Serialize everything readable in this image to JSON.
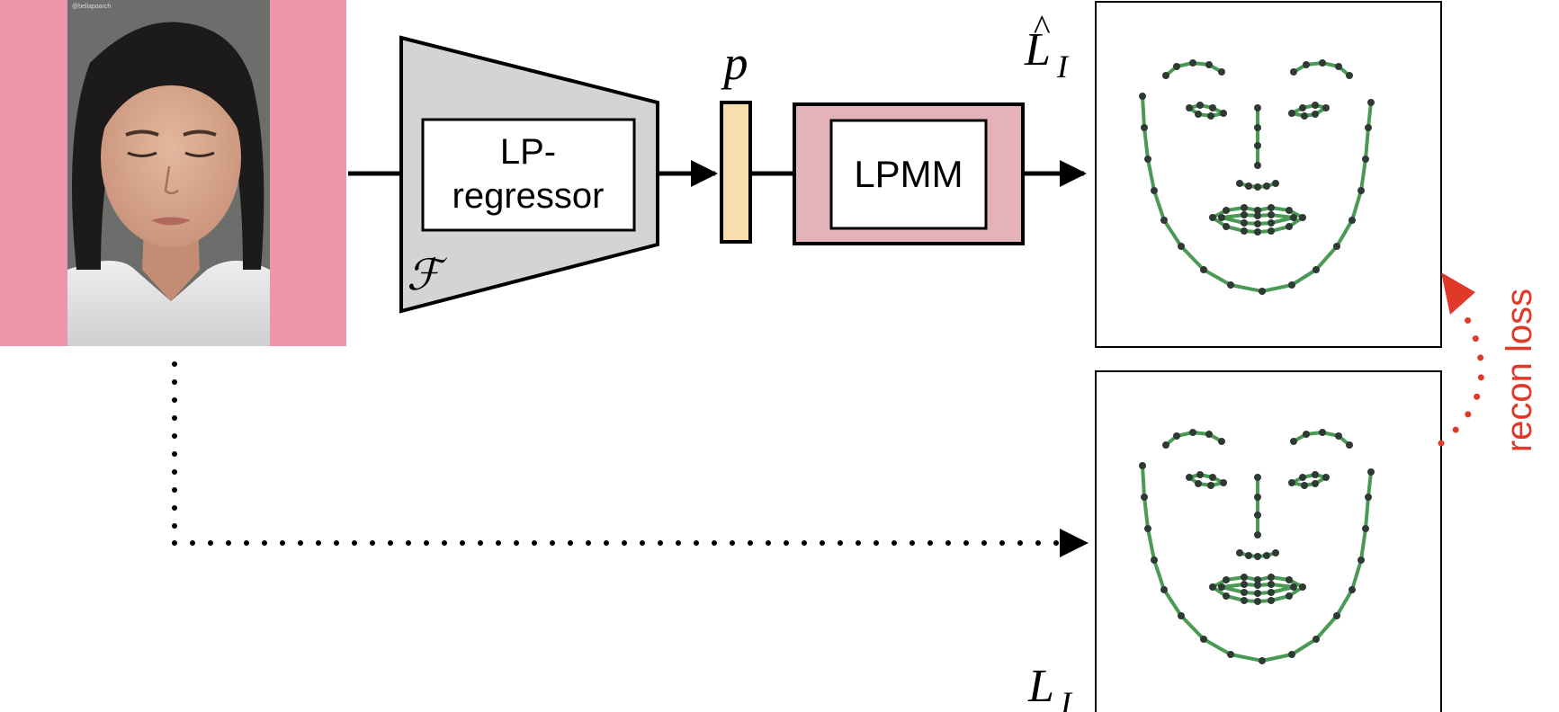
{
  "input_image": {
    "caption": "@bellapoarch"
  },
  "encoder": {
    "label_line1": "LP-",
    "label_line2": "regressor",
    "symbol": "ℱ"
  },
  "params": {
    "label": "p"
  },
  "model": {
    "label": "LPMM"
  },
  "predicted": {
    "label_main": "L",
    "label_sub": "I",
    "hat": "^"
  },
  "ground_truth": {
    "label_main": "L",
    "label_sub": "I"
  },
  "loss": {
    "label": "recon loss"
  },
  "colors": {
    "image_border": "#ee95aa",
    "encoder_fill": "#d4d4d4",
    "param_fill": "#f7deaf",
    "model_fill": "#e4b3b9",
    "landmark_line": "#4a9a55",
    "landmark_point": "#2e3a33",
    "loss_color": "#e0392a"
  }
}
